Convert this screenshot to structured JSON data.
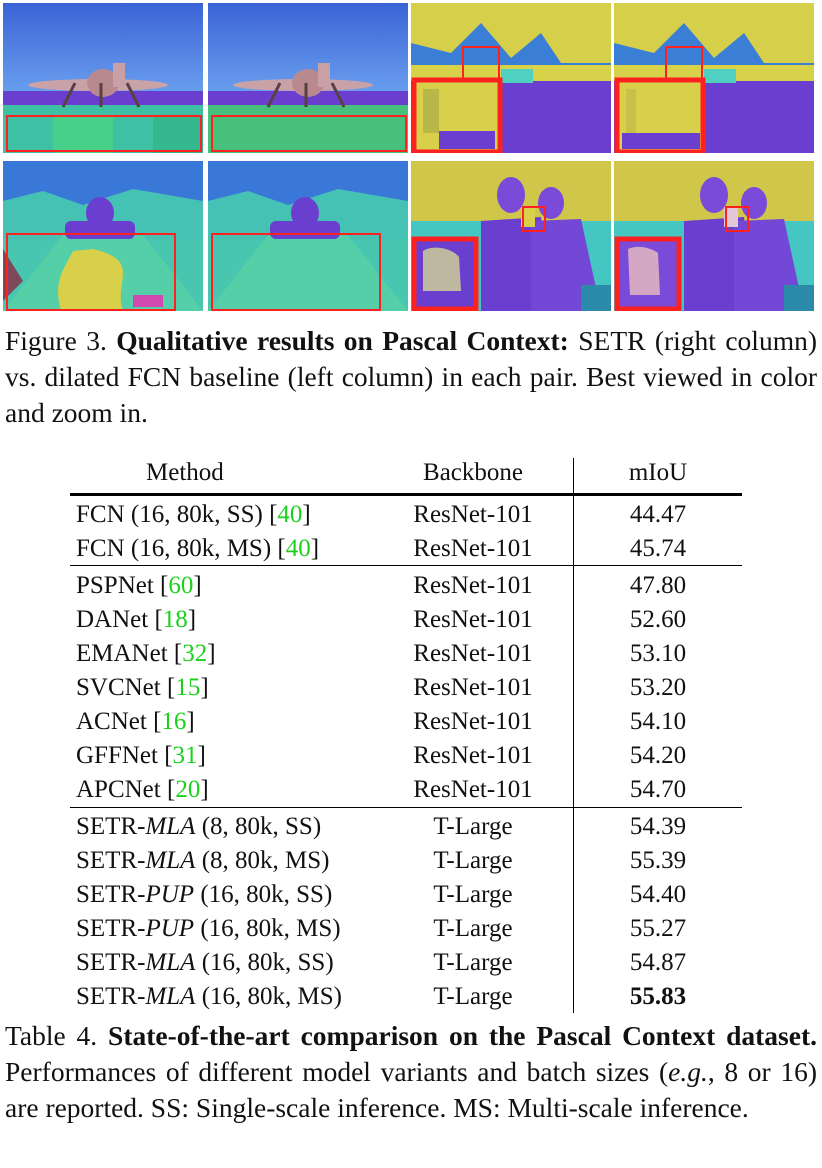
{
  "figure": {
    "caption": {
      "prefix": "Figure 3. ",
      "title": "Qualitative results on Pascal Context:",
      "body": " SETR (right column) vs. dilated FCN baseline (left column) in each pair. Best viewed in color and zoom in."
    }
  },
  "table": {
    "headers": {
      "method": "Method",
      "backbone": "Backbone",
      "miou": "mIoU"
    },
    "groups": [
      [
        {
          "name": "FCN (16, 80k, SS) [",
          "ref": "40",
          "after": "]",
          "backbone": "ResNet-101",
          "miou": "44.47"
        },
        {
          "name": "FCN (16, 80k, MS) [",
          "ref": "40",
          "after": "]",
          "backbone": "ResNet-101",
          "miou": "45.74"
        }
      ],
      [
        {
          "name": "PSPNet [",
          "ref": "60",
          "after": "]",
          "backbone": "ResNet-101",
          "miou": "47.80"
        },
        {
          "name": "DANet [",
          "ref": "18",
          "after": "]",
          "backbone": "ResNet-101",
          "miou": "52.60"
        },
        {
          "name": "EMANet [",
          "ref": "32",
          "after": "]",
          "backbone": "ResNet-101",
          "miou": "53.10"
        },
        {
          "name": "SVCNet [",
          "ref": "15",
          "after": "]",
          "backbone": "ResNet-101",
          "miou": "53.20"
        },
        {
          "name": "ACNet [",
          "ref": "16",
          "after": "]",
          "backbone": "ResNet-101",
          "miou": "54.10"
        },
        {
          "name": "GFFNet [",
          "ref": "31",
          "after": "]",
          "backbone": "ResNet-101",
          "miou": "54.20"
        },
        {
          "name": "APCNet [",
          "ref": "20",
          "after": "]",
          "backbone": "ResNet-101",
          "miou": "54.70"
        }
      ],
      [
        {
          "name": "SETR-",
          "variant": "MLA",
          "after": " (8, 80k, SS)",
          "backbone": "T-Large",
          "miou": "54.39"
        },
        {
          "name": "SETR-",
          "variant": "MLA",
          "after": " (8, 80k, MS)",
          "backbone": "T-Large",
          "miou": "55.39"
        },
        {
          "name": "SETR-",
          "variant": "PUP",
          "after": " (16, 80k, SS)",
          "backbone": "T-Large",
          "miou": "54.40"
        },
        {
          "name": "SETR-",
          "variant": "PUP",
          "after": " (16, 80k, MS)",
          "backbone": "T-Large",
          "miou": "55.27"
        },
        {
          "name": "SETR-",
          "variant": "MLA",
          "after": " (16, 80k, SS)",
          "backbone": "T-Large",
          "miou": "54.87"
        },
        {
          "name": "SETR-",
          "variant": "MLA",
          "after": " (16, 80k, MS)",
          "backbone": "T-Large",
          "miou": "55.83",
          "best": true
        }
      ]
    ],
    "caption": {
      "prefix": "Table 4. ",
      "title": "State-of-the-art comparison on the Pascal Context dataset.",
      "body_1": " Performances of different model variants and batch sizes (",
      "eg": "e.g.",
      "body_2": ", 8 or 16) are reported. SS: Single-scale inference. MS: Multi-scale inference."
    }
  },
  "colors": {
    "ref_link": "#1bd11b",
    "highlight_box": "#ff2020",
    "seg_purple": "#6a3fd0",
    "seg_teal": "#3fc6b4",
    "seg_yellow": "#d8d24a",
    "seg_sky": "#3a6fd8"
  }
}
